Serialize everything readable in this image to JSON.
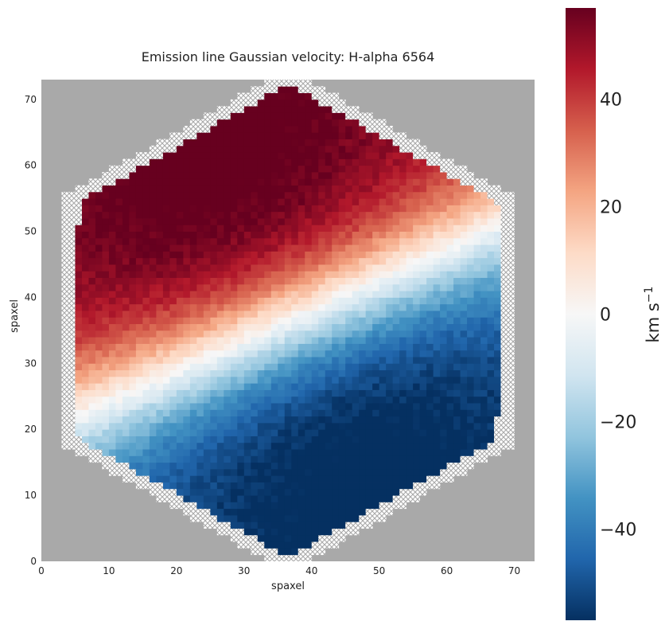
{
  "chart_data": {
    "type": "heatmap",
    "title": "Emission line Gaussian velocity: H-alpha 6564",
    "xlabel": "spaxel",
    "ylabel": "spaxel",
    "xlim": [
      0,
      73
    ],
    "ylim": [
      0,
      73
    ],
    "x_ticks": [
      0,
      10,
      20,
      30,
      40,
      50,
      60,
      70
    ],
    "y_ticks": [
      0,
      10,
      20,
      30,
      40,
      50,
      60,
      70
    ],
    "grid": false,
    "colormap": "RdBu_r",
    "background_color": "#a9a9a9",
    "masked_region": "hatched",
    "map_center": [
      36.5,
      36.5
    ],
    "valid_hexagon_apothem": 31,
    "masked_hexagon_apothem": 33,
    "kinematic": {
      "description_free": true,
      "velocity_amplitude": 62,
      "position_angle_deg": 25,
      "turnover_spaxels": 11
    },
    "colorbar": {
      "label": "km s",
      "label_exponent": "−1",
      "vmin": -57,
      "vmax": 57,
      "ticks": [
        -40,
        -20,
        0,
        20,
        40
      ],
      "tick_labels": [
        "−40",
        "−20",
        "0",
        "20",
        "40"
      ]
    }
  }
}
